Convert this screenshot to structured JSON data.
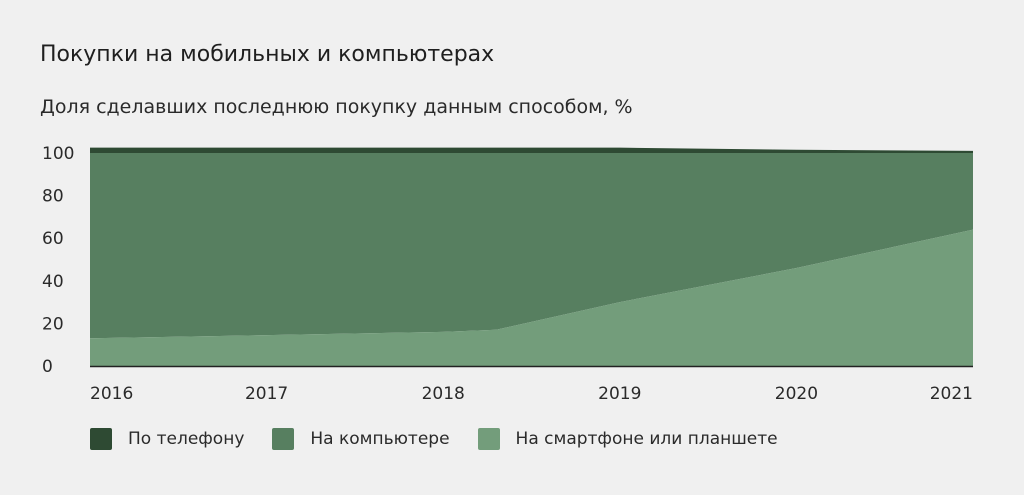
{
  "title": "Покупки на мобильных и компьютерах",
  "subtitle": "Доля сделавших последнюю покупку данным способом, %",
  "colors": {
    "phone": "#2e4a33",
    "computer": "#577f60",
    "smartphone": "#739d7b",
    "axis": "#222222"
  },
  "chart_data": {
    "type": "area",
    "stacked": true,
    "x": [
      2016,
      2017,
      2018,
      2018.3,
      2019,
      2020,
      2021
    ],
    "x_ticks": [
      "2016",
      "2017",
      "2018",
      "2019",
      "2020",
      "2021"
    ],
    "y_ticks": [
      "0",
      "20",
      "40",
      "60",
      "80",
      "100"
    ],
    "ylim": [
      0,
      100
    ],
    "series": [
      {
        "name": "На смартфоне или планшете",
        "values": [
          13,
          14.5,
          16,
          17,
          30,
          46,
          64
        ]
      },
      {
        "name": "На компьютере",
        "values": [
          87,
          85.5,
          84,
          83,
          70,
          54,
          36
        ]
      },
      {
        "name": "По телефону",
        "values": [
          5,
          4,
          3,
          3,
          2.5,
          1.5,
          1
        ]
      }
    ],
    "legend": [
      "По телефону",
      "На компьютере",
      "На смартфоне или планшете"
    ],
    "legend_placement": "bottom",
    "grid": false
  }
}
